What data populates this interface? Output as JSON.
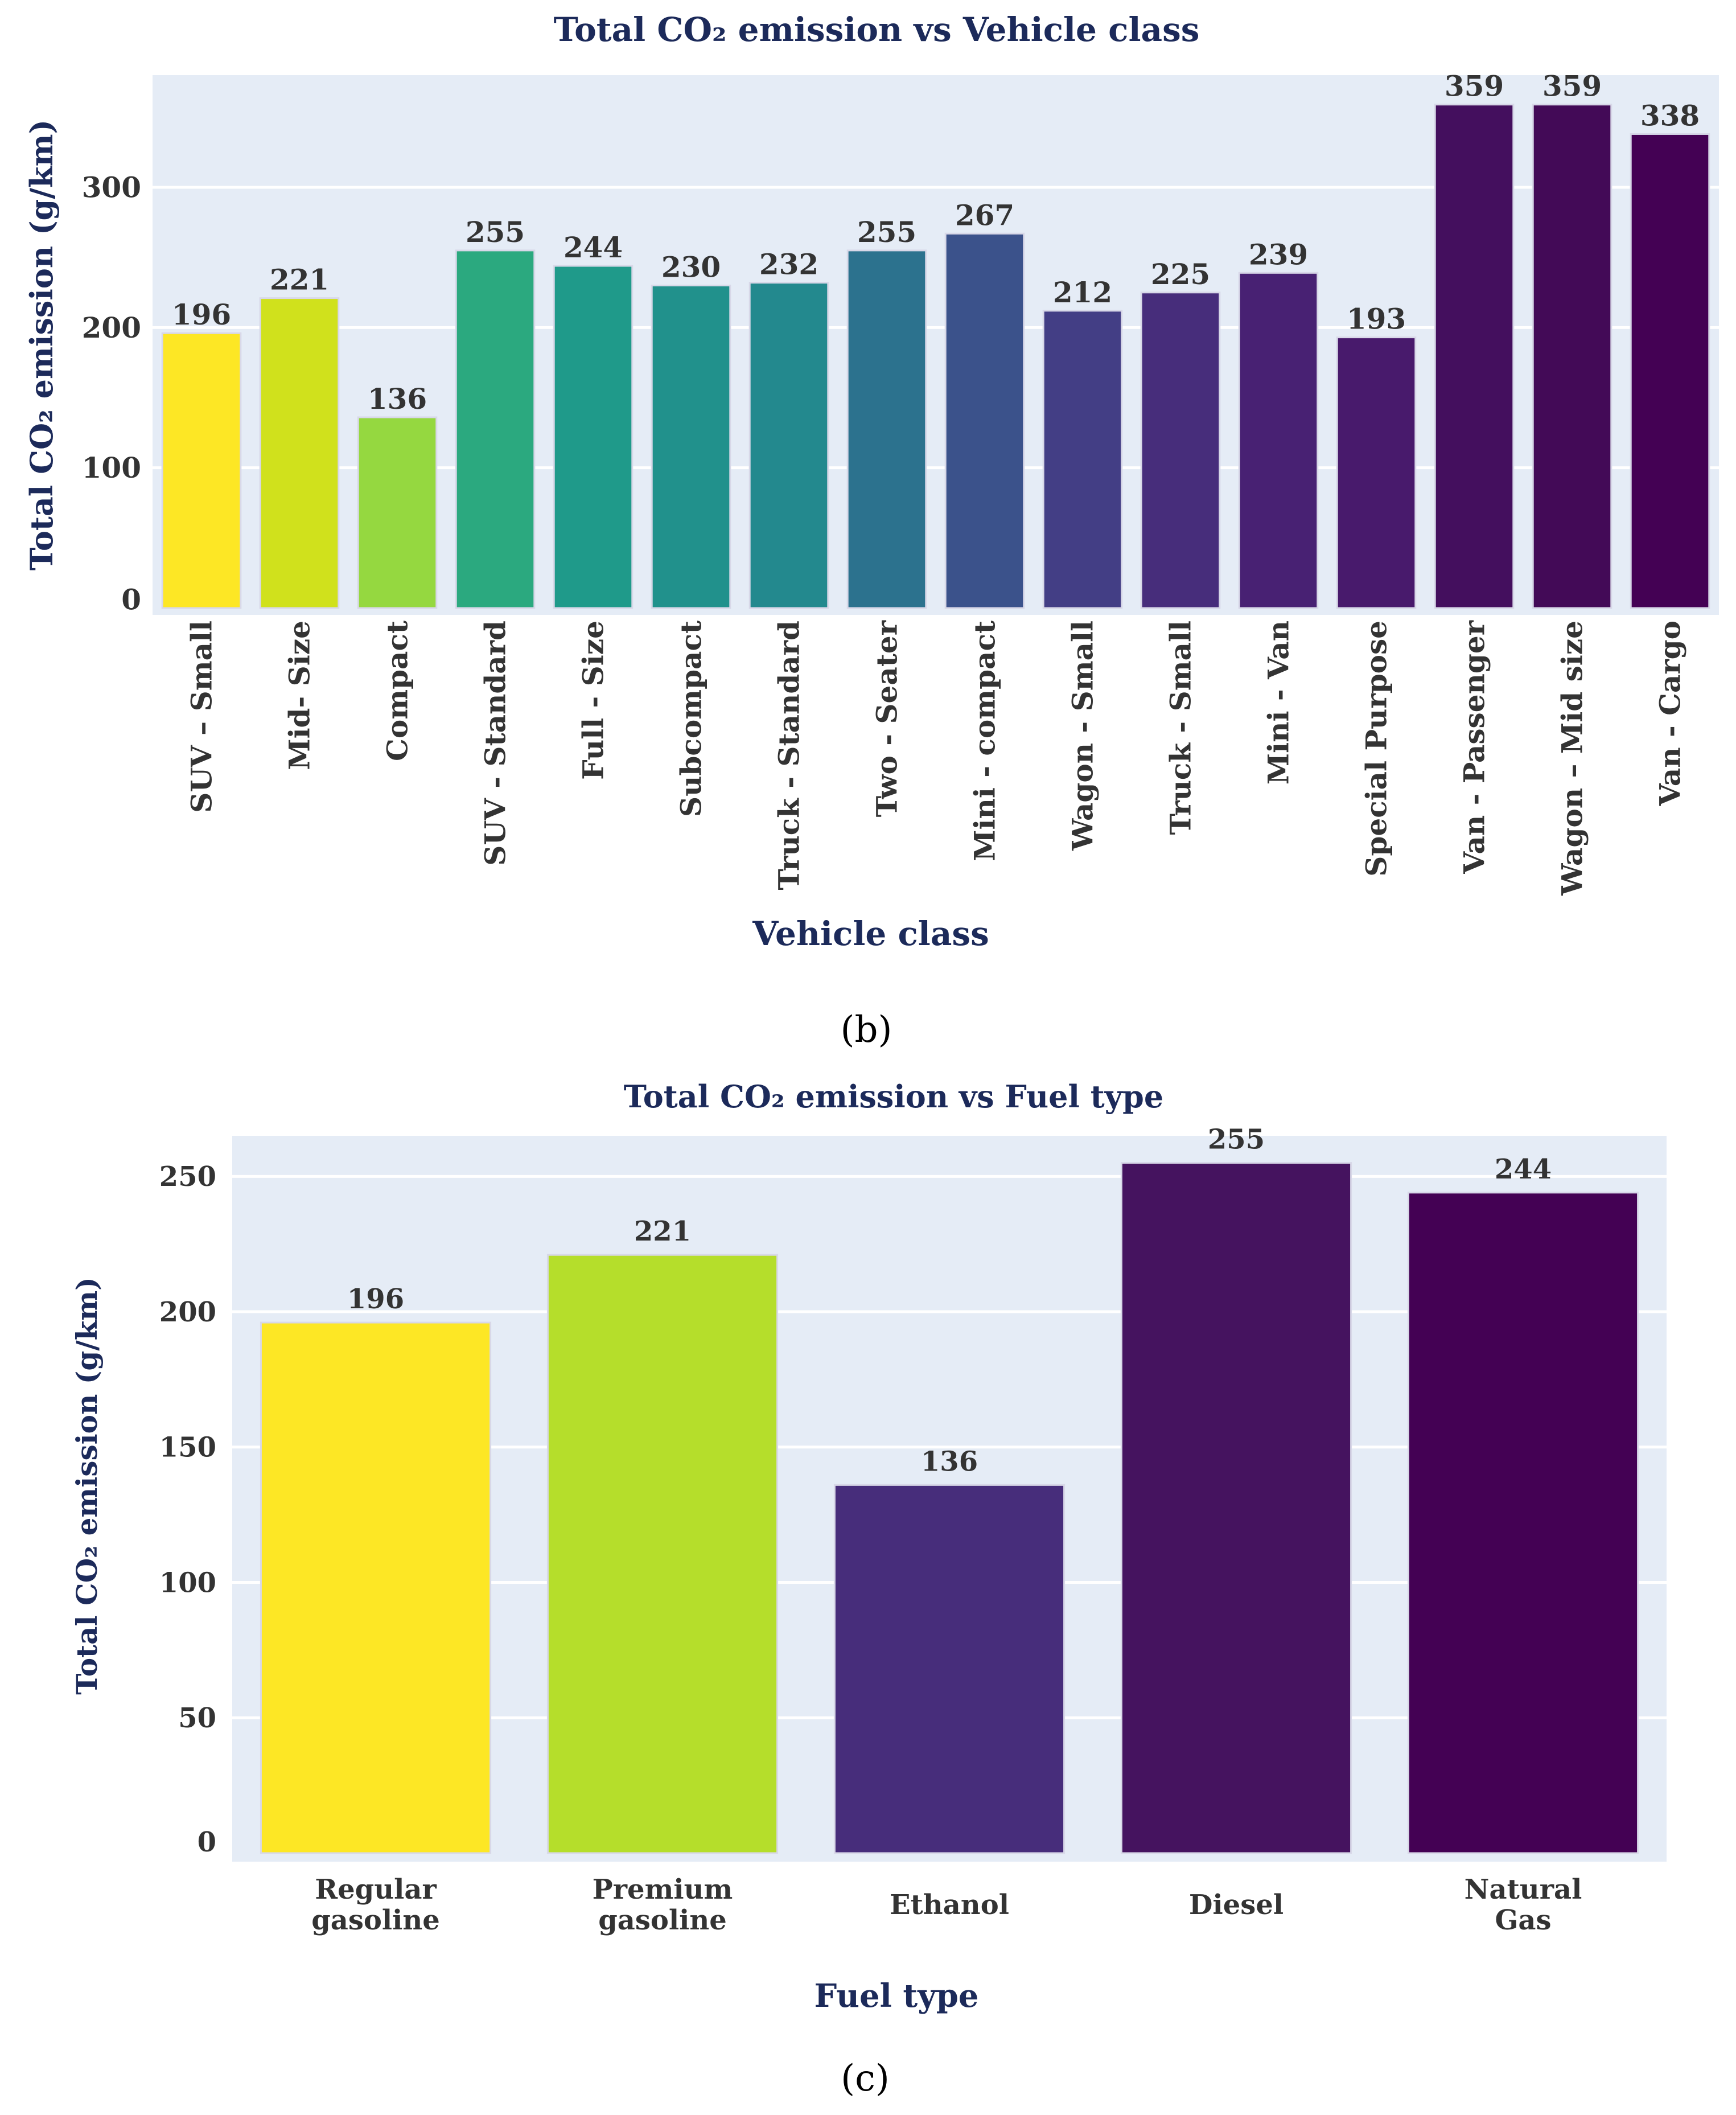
{
  "chart_data": [
    {
      "type": "bar",
      "title": "Total CO₂ emission vs Vehicle class",
      "xlabel": "Vehicle class",
      "ylabel": "Total CO₂ emission (g/km)",
      "panel_label": "(b)",
      "categories": [
        "SUV – Small",
        "Mid- Size",
        "Compact",
        "SUV - Standard",
        "Full - Size",
        "Subcompact",
        "Truck - Standard",
        "Two - Seater",
        "Mini - compact",
        "Wagon - Small",
        "Truck - Small",
        "Mini - Van",
        "Special Purpose",
        "Van - Passenger",
        "Wagon – Mid size",
        "Van - Cargo"
      ],
      "values": [
        196,
        221,
        136,
        255,
        244,
        230,
        232,
        255,
        267,
        212,
        225,
        239,
        193,
        359,
        359,
        338
      ],
      "colors": [
        "#fde725",
        "#d0e11c",
        "#95d840",
        "#2ba97f",
        "#1f9a8a",
        "#21918c",
        "#23898e",
        "#2c728e",
        "#3b528b",
        "#433e85",
        "#472d7b",
        "#482173",
        "#481a6c",
        "#440f5e",
        "#430a57",
        "#440154"
      ],
      "ylim": [
        0,
        380
      ],
      "yticks": [
        0,
        100,
        200,
        300
      ],
      "grid": true,
      "legend": "none",
      "background": "#e5ecf6"
    },
    {
      "type": "bar",
      "title": "Total CO₂ emission vs Fuel type",
      "xlabel": "Fuel type",
      "ylabel": "Total CO₂ emission (g/km)",
      "panel_label": "(c)",
      "categories": [
        "Regular gasoline",
        "Premium gasoline",
        "Ethanol",
        "Diesel",
        "Natural Gas"
      ],
      "values": [
        196,
        221,
        136,
        255,
        244
      ],
      "colors": [
        "#fde725",
        "#b5de2b",
        "#472d7b",
        "#45135f",
        "#440154"
      ],
      "ylim": [
        0,
        265
      ],
      "yticks": [
        0,
        50,
        100,
        150,
        200,
        250
      ],
      "grid": true,
      "legend": "none",
      "background": "#e5ecf6"
    }
  ]
}
